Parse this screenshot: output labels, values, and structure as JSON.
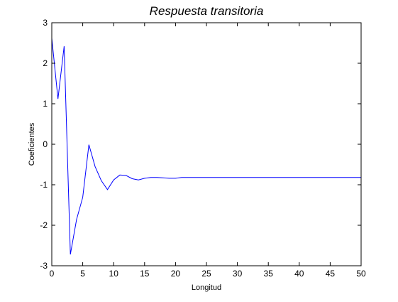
{
  "chart_data": {
    "type": "line",
    "title": "Respuesta transitoria",
    "xlabel": "Longitud",
    "ylabel": "Coeficientes",
    "xlim": [
      0,
      50
    ],
    "ylim": [
      -3,
      3
    ],
    "xticks": [
      0,
      5,
      10,
      15,
      20,
      25,
      30,
      35,
      40,
      45,
      50
    ],
    "yticks": [
      -3,
      -2,
      -1,
      0,
      1,
      2,
      3
    ],
    "grid": false,
    "series": [
      {
        "color": "#0000ff",
        "x": [
          0,
          1,
          2,
          3,
          4,
          5,
          6,
          7,
          8,
          9,
          10,
          11,
          12,
          13,
          14,
          15,
          16,
          17,
          18,
          19,
          20,
          21,
          22,
          23,
          24,
          25,
          26,
          27,
          28,
          29,
          30,
          31,
          32,
          33,
          34,
          35,
          36,
          37,
          38,
          39,
          40,
          41,
          42,
          43,
          44,
          45,
          46,
          47,
          48,
          49,
          50
        ],
        "y": [
          2.62,
          1.12,
          2.42,
          -2.72,
          -1.86,
          -1.31,
          -0.01,
          -0.55,
          -0.9,
          -1.12,
          -0.88,
          -0.76,
          -0.77,
          -0.85,
          -0.88,
          -0.84,
          -0.82,
          -0.82,
          -0.83,
          -0.84,
          -0.84,
          -0.82,
          -0.82,
          -0.82,
          -0.82,
          -0.82,
          -0.82,
          -0.82,
          -0.82,
          -0.82,
          -0.82,
          -0.82,
          -0.82,
          -0.82,
          -0.82,
          -0.82,
          -0.82,
          -0.82,
          -0.82,
          -0.82,
          -0.82,
          -0.82,
          -0.82,
          -0.82,
          -0.82,
          -0.82,
          -0.82,
          -0.82,
          -0.82,
          -0.82,
          -0.82
        ]
      }
    ]
  }
}
